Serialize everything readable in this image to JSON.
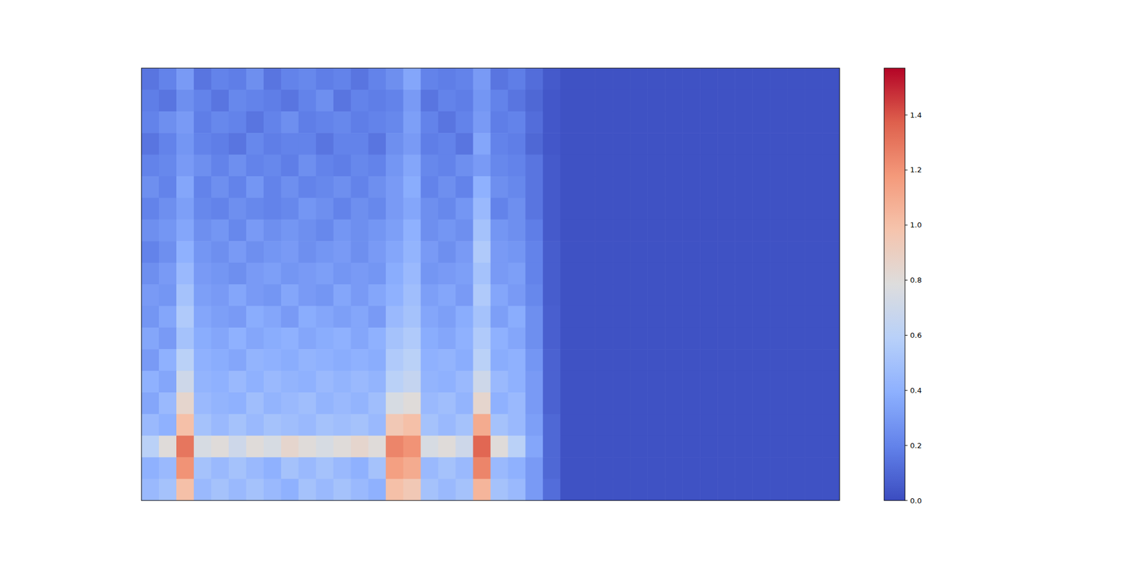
{
  "chart_data": {
    "type": "heatmap",
    "tick_labels": false,
    "color_range": [
      0,
      1.57
    ],
    "color_ticks": [
      {
        "value": 0,
        "label": "0.0"
      },
      {
        "value": 0.2,
        "label": "0.2"
      },
      {
        "value": 0.4,
        "label": "0.4"
      },
      {
        "value": 0.6,
        "label": "0.6"
      },
      {
        "value": 0.8,
        "label": "0.8"
      },
      {
        "value": 1.0,
        "label": "1.0"
      },
      {
        "value": 1.2,
        "label": "1.2"
      },
      {
        "value": 1.4,
        "label": "1.4"
      }
    ],
    "values": [
      [
        0.15,
        0.2,
        0.3,
        0.15,
        0.2,
        0.18,
        0.25,
        0.15,
        0.2,
        0.22,
        0.18,
        0.2,
        0.15,
        0.2,
        0.25,
        0.35,
        0.2,
        0.18,
        0.2,
        0.3,
        0.15,
        0.18,
        0.12,
        0.05,
        0.02,
        0.02,
        0.02,
        0.02,
        0.02,
        0.02,
        0.02,
        0.02,
        0.02,
        0.02,
        0.02,
        0.02,
        0.02,
        0.02,
        0.02,
        0.02
      ],
      [
        0.18,
        0.15,
        0.25,
        0.2,
        0.15,
        0.22,
        0.2,
        0.18,
        0.15,
        0.2,
        0.25,
        0.15,
        0.2,
        0.18,
        0.2,
        0.3,
        0.15,
        0.2,
        0.18,
        0.28,
        0.2,
        0.15,
        0.1,
        0.04,
        0.02,
        0.02,
        0.02,
        0.02,
        0.02,
        0.02,
        0.02,
        0.02,
        0.02,
        0.02,
        0.02,
        0.02,
        0.02,
        0.02,
        0.02,
        0.02
      ],
      [
        0.2,
        0.25,
        0.3,
        0.18,
        0.22,
        0.2,
        0.15,
        0.2,
        0.25,
        0.18,
        0.2,
        0.22,
        0.18,
        0.2,
        0.22,
        0.32,
        0.2,
        0.15,
        0.2,
        0.3,
        0.18,
        0.2,
        0.12,
        0.04,
        0.02,
        0.02,
        0.02,
        0.02,
        0.02,
        0.02,
        0.02,
        0.02,
        0.02,
        0.02,
        0.02,
        0.02,
        0.02,
        0.02,
        0.02,
        0.02
      ],
      [
        0.15,
        0.2,
        0.28,
        0.2,
        0.18,
        0.15,
        0.22,
        0.18,
        0.2,
        0.2,
        0.15,
        0.2,
        0.2,
        0.15,
        0.25,
        0.3,
        0.18,
        0.2,
        0.15,
        0.35,
        0.2,
        0.18,
        0.1,
        0.04,
        0.02,
        0.02,
        0.02,
        0.02,
        0.02,
        0.02,
        0.02,
        0.02,
        0.02,
        0.02,
        0.02,
        0.02,
        0.02,
        0.02,
        0.02,
        0.02
      ],
      [
        0.2,
        0.22,
        0.3,
        0.25,
        0.2,
        0.25,
        0.2,
        0.22,
        0.18,
        0.25,
        0.2,
        0.18,
        0.22,
        0.2,
        0.28,
        0.35,
        0.22,
        0.2,
        0.25,
        0.3,
        0.22,
        0.2,
        0.15,
        0.05,
        0.02,
        0.02,
        0.02,
        0.02,
        0.02,
        0.02,
        0.02,
        0.02,
        0.02,
        0.02,
        0.02,
        0.02,
        0.02,
        0.02,
        0.02,
        0.02
      ],
      [
        0.25,
        0.2,
        0.35,
        0.2,
        0.25,
        0.2,
        0.28,
        0.2,
        0.25,
        0.2,
        0.22,
        0.25,
        0.2,
        0.25,
        0.3,
        0.38,
        0.2,
        0.25,
        0.2,
        0.4,
        0.25,
        0.22,
        0.15,
        0.05,
        0.02,
        0.02,
        0.02,
        0.02,
        0.02,
        0.02,
        0.02,
        0.02,
        0.02,
        0.02,
        0.02,
        0.02,
        0.02,
        0.02,
        0.02,
        0.02
      ],
      [
        0.2,
        0.25,
        0.32,
        0.22,
        0.2,
        0.25,
        0.22,
        0.2,
        0.22,
        0.28,
        0.25,
        0.2,
        0.25,
        0.22,
        0.3,
        0.35,
        0.25,
        0.22,
        0.28,
        0.45,
        0.2,
        0.25,
        0.15,
        0.05,
        0.02,
        0.02,
        0.02,
        0.02,
        0.02,
        0.02,
        0.02,
        0.02,
        0.02,
        0.02,
        0.02,
        0.02,
        0.02,
        0.02,
        0.02,
        0.02
      ],
      [
        0.25,
        0.28,
        0.35,
        0.25,
        0.28,
        0.22,
        0.3,
        0.25,
        0.28,
        0.25,
        0.22,
        0.28,
        0.25,
        0.28,
        0.32,
        0.4,
        0.25,
        0.28,
        0.25,
        0.5,
        0.28,
        0.25,
        0.18,
        0.05,
        0.02,
        0.02,
        0.02,
        0.02,
        0.02,
        0.02,
        0.02,
        0.02,
        0.02,
        0.02,
        0.02,
        0.02,
        0.02,
        0.02,
        0.02,
        0.02
      ],
      [
        0.2,
        0.25,
        0.4,
        0.28,
        0.25,
        0.3,
        0.25,
        0.28,
        0.3,
        0.25,
        0.28,
        0.3,
        0.25,
        0.3,
        0.35,
        0.42,
        0.3,
        0.25,
        0.3,
        0.55,
        0.3,
        0.28,
        0.2,
        0.06,
        0.02,
        0.02,
        0.02,
        0.02,
        0.02,
        0.02,
        0.02,
        0.02,
        0.02,
        0.02,
        0.02,
        0.02,
        0.02,
        0.02,
        0.02,
        0.02
      ],
      [
        0.25,
        0.3,
        0.45,
        0.3,
        0.28,
        0.25,
        0.3,
        0.32,
        0.28,
        0.3,
        0.32,
        0.28,
        0.3,
        0.28,
        0.38,
        0.45,
        0.28,
        0.3,
        0.32,
        0.5,
        0.3,
        0.32,
        0.2,
        0.06,
        0.02,
        0.02,
        0.02,
        0.02,
        0.02,
        0.02,
        0.02,
        0.02,
        0.02,
        0.02,
        0.02,
        0.02,
        0.02,
        0.02,
        0.02,
        0.02
      ],
      [
        0.3,
        0.28,
        0.5,
        0.32,
        0.3,
        0.35,
        0.3,
        0.28,
        0.35,
        0.3,
        0.28,
        0.35,
        0.3,
        0.35,
        0.4,
        0.48,
        0.32,
        0.35,
        0.3,
        0.55,
        0.35,
        0.3,
        0.22,
        0.06,
        0.02,
        0.02,
        0.02,
        0.02,
        0.02,
        0.02,
        0.02,
        0.02,
        0.02,
        0.02,
        0.02,
        0.02,
        0.02,
        0.02,
        0.02,
        0.02
      ],
      [
        0.28,
        0.35,
        0.55,
        0.35,
        0.32,
        0.3,
        0.38,
        0.35,
        0.3,
        0.38,
        0.35,
        0.32,
        0.35,
        0.3,
        0.45,
        0.5,
        0.35,
        0.32,
        0.38,
        0.5,
        0.32,
        0.38,
        0.25,
        0.07,
        0.02,
        0.02,
        0.02,
        0.02,
        0.02,
        0.02,
        0.02,
        0.02,
        0.02,
        0.02,
        0.02,
        0.02,
        0.02,
        0.02,
        0.02,
        0.02
      ],
      [
        0.35,
        0.3,
        0.5,
        0.38,
        0.35,
        0.4,
        0.35,
        0.38,
        0.4,
        0.35,
        0.38,
        0.4,
        0.35,
        0.4,
        0.5,
        0.55,
        0.38,
        0.35,
        0.4,
        0.55,
        0.4,
        0.35,
        0.25,
        0.07,
        0.02,
        0.02,
        0.02,
        0.02,
        0.02,
        0.02,
        0.02,
        0.02,
        0.02,
        0.02,
        0.02,
        0.02,
        0.02,
        0.02,
        0.02,
        0.02
      ],
      [
        0.3,
        0.4,
        0.6,
        0.4,
        0.38,
        0.35,
        0.42,
        0.4,
        0.38,
        0.42,
        0.4,
        0.38,
        0.4,
        0.38,
        0.55,
        0.6,
        0.4,
        0.42,
        0.38,
        0.6,
        0.38,
        0.4,
        0.28,
        0.08,
        0.02,
        0.02,
        0.02,
        0.02,
        0.02,
        0.02,
        0.02,
        0.02,
        0.02,
        0.02,
        0.02,
        0.02,
        0.02,
        0.02,
        0.02,
        0.02
      ],
      [
        0.4,
        0.35,
        0.7,
        0.42,
        0.4,
        0.45,
        0.4,
        0.45,
        0.42,
        0.4,
        0.45,
        0.42,
        0.45,
        0.42,
        0.6,
        0.65,
        0.42,
        0.4,
        0.45,
        0.7,
        0.45,
        0.4,
        0.3,
        0.08,
        0.02,
        0.02,
        0.02,
        0.02,
        0.02,
        0.02,
        0.02,
        0.02,
        0.02,
        0.02,
        0.02,
        0.02,
        0.02,
        0.02,
        0.02,
        0.02
      ],
      [
        0.35,
        0.45,
        0.85,
        0.45,
        0.42,
        0.4,
        0.48,
        0.42,
        0.45,
        0.48,
        0.42,
        0.45,
        0.42,
        0.48,
        0.75,
        0.8,
        0.45,
        0.48,
        0.42,
        0.85,
        0.4,
        0.45,
        0.3,
        0.08,
        0.02,
        0.02,
        0.02,
        0.02,
        0.02,
        0.02,
        0.02,
        0.02,
        0.02,
        0.02,
        0.02,
        0.02,
        0.02,
        0.02,
        0.02,
        0.02
      ],
      [
        0.45,
        0.4,
        1.0,
        0.5,
        0.45,
        0.5,
        0.45,
        0.5,
        0.48,
        0.45,
        0.5,
        0.48,
        0.5,
        0.45,
        0.95,
        1.0,
        0.5,
        0.45,
        0.5,
        1.1,
        0.5,
        0.45,
        0.32,
        0.1,
        0.02,
        0.02,
        0.02,
        0.02,
        0.02,
        0.02,
        0.02,
        0.02,
        0.02,
        0.02,
        0.02,
        0.02,
        0.02,
        0.02,
        0.02,
        0.02
      ],
      [
        0.6,
        0.8,
        1.3,
        0.75,
        0.8,
        0.7,
        0.8,
        0.75,
        0.85,
        0.8,
        0.75,
        0.8,
        0.85,
        0.8,
        1.25,
        1.2,
        0.75,
        0.8,
        0.7,
        1.35,
        0.8,
        0.6,
        0.35,
        0.1,
        0.02,
        0.02,
        0.02,
        0.02,
        0.02,
        0.02,
        0.02,
        0.02,
        0.02,
        0.02,
        0.02,
        0.02,
        0.02,
        0.02,
        0.02,
        0.02
      ],
      [
        0.4,
        0.45,
        1.2,
        0.5,
        0.45,
        0.5,
        0.45,
        0.4,
        0.5,
        0.45,
        0.5,
        0.45,
        0.4,
        0.5,
        1.15,
        1.1,
        0.45,
        0.5,
        0.45,
        1.25,
        0.45,
        0.4,
        0.3,
        0.1,
        0.02,
        0.02,
        0.02,
        0.02,
        0.02,
        0.02,
        0.02,
        0.02,
        0.02,
        0.02,
        0.02,
        0.02,
        0.02,
        0.02,
        0.02,
        0.02
      ],
      [
        0.45,
        0.5,
        1.0,
        0.45,
        0.5,
        0.45,
        0.5,
        0.45,
        0.4,
        0.5,
        0.45,
        0.5,
        0.45,
        0.4,
        1.0,
        0.95,
        0.5,
        0.45,
        0.5,
        1.05,
        0.5,
        0.45,
        0.3,
        0.12,
        0.02,
        0.02,
        0.02,
        0.02,
        0.02,
        0.02,
        0.02,
        0.02,
        0.02,
        0.02,
        0.02,
        0.02,
        0.02,
        0.02,
        0.02,
        0.02
      ]
    ]
  }
}
